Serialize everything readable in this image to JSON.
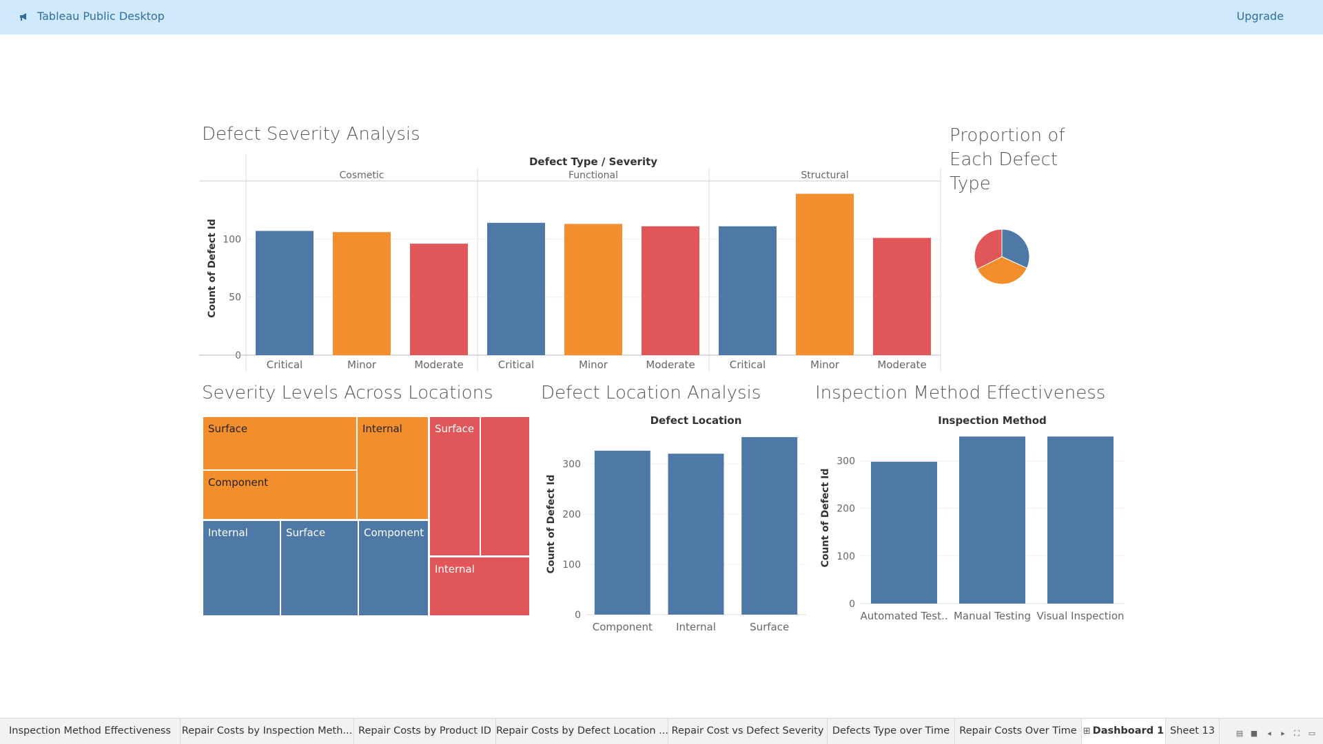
{
  "app": {
    "title": "Tableau Public Desktop",
    "upgrade_label": "Upgrade"
  },
  "colors": {
    "critical": "#4e79a7",
    "minor": "#f28e2b",
    "moderate": "#e15759",
    "app_bar": "#d0e9fc",
    "accent_text": "#2f6fa0"
  },
  "dashboard": {
    "severity_panel": {
      "title": "Defect Severity Analysis"
    },
    "proportion_panel": {
      "title": "Proportion of Each Defect Type"
    },
    "treemap_panel": {
      "title": "Severity Levels Across Locations"
    },
    "location_panel": {
      "title": "Defect Location Analysis"
    },
    "inspection_panel": {
      "title": "Inspection Method Effectiveness"
    }
  },
  "chart_data": [
    {
      "type": "bar",
      "title": "Defect Severity Analysis",
      "header": "Defect Type / Severity",
      "ylabel": "Count of Defect Id",
      "ylim": [
        0,
        150
      ],
      "yticks": [
        0,
        50,
        100
      ],
      "grid": true,
      "groups": [
        {
          "name": "Cosmetic",
          "categories": [
            "Critical",
            "Minor",
            "Moderate"
          ],
          "values": [
            107,
            106,
            96
          ]
        },
        {
          "name": "Functional",
          "categories": [
            "Critical",
            "Minor",
            "Moderate"
          ],
          "values": [
            114,
            113,
            111
          ]
        },
        {
          "name": "Structural",
          "categories": [
            "Critical",
            "Minor",
            "Moderate"
          ],
          "values": [
            111,
            139,
            101
          ]
        }
      ]
    },
    {
      "type": "pie",
      "title": "Proportion of Each Defect Type",
      "slices": [
        {
          "value": 318,
          "color": "#4e79a7"
        },
        {
          "value": 358,
          "color": "#f28e2b"
        },
        {
          "value": 324,
          "color": "#e15759"
        }
      ]
    },
    {
      "type": "heatmap",
      "title": "Severity Levels Across Locations",
      "blocks": [
        {
          "color": "#f28e2b",
          "cells": [
            {
              "label": "Surface",
              "value": 120
            },
            {
              "label": "Component",
              "value": 115
            },
            {
              "label": "Internal",
              "value": 123
            }
          ]
        },
        {
          "color": "#4e79a7",
          "cells": [
            {
              "label": "Internal",
              "value": 111
            },
            {
              "label": "Surface",
              "value": 111
            },
            {
              "label": "Component",
              "value": 110
            }
          ]
        },
        {
          "color": "#e15759",
          "cells": [
            {
              "label": "Surface",
              "value": 104
            },
            {
              "label": "",
              "value": 104
            },
            {
              "label": "Internal",
              "value": 103
            }
          ]
        }
      ]
    },
    {
      "type": "bar",
      "title": "Defect Location Analysis",
      "header": "Defect Location",
      "ylabel": "Count of Defect Id",
      "categories": [
        "Component",
        "Internal",
        "Surface"
      ],
      "values": [
        326,
        320,
        353
      ],
      "ylim": [
        0,
        360
      ],
      "yticks": [
        0,
        100,
        200,
        300
      ]
    },
    {
      "type": "bar",
      "title": "Inspection Method Effectiveness",
      "header": "Inspection Method",
      "ylabel": "Count of Defect Id",
      "categories": [
        "Automated Test..",
        "Manual Testing",
        "Visual Inspection"
      ],
      "values": [
        298,
        351,
        351
      ],
      "ylim": [
        0,
        360
      ],
      "yticks": [
        0,
        100,
        200,
        300
      ]
    }
  ],
  "sheet_tabs": [
    {
      "label": "Inspection Method Effectiveness"
    },
    {
      "label": "Repair Costs by Inspection Meth..."
    },
    {
      "label": "Repair Costs by Product ID"
    },
    {
      "label": "Repair Costs by Defect Location ..."
    },
    {
      "label": "Repair Cost vs Defect Severity"
    },
    {
      "label": "Defects Type over Time"
    },
    {
      "label": "Repair Costs Over Time"
    },
    {
      "label": "Dashboard 1",
      "active": true,
      "icon": "dashboard-grid-icon"
    },
    {
      "label": "Sheet 13"
    }
  ],
  "status_icons": [
    "show-filmstrip-icon",
    "show-tabs-icon",
    "previous-sheet-icon",
    "next-sheet-icon",
    "fullscreen-icon",
    "presentation-icon"
  ]
}
